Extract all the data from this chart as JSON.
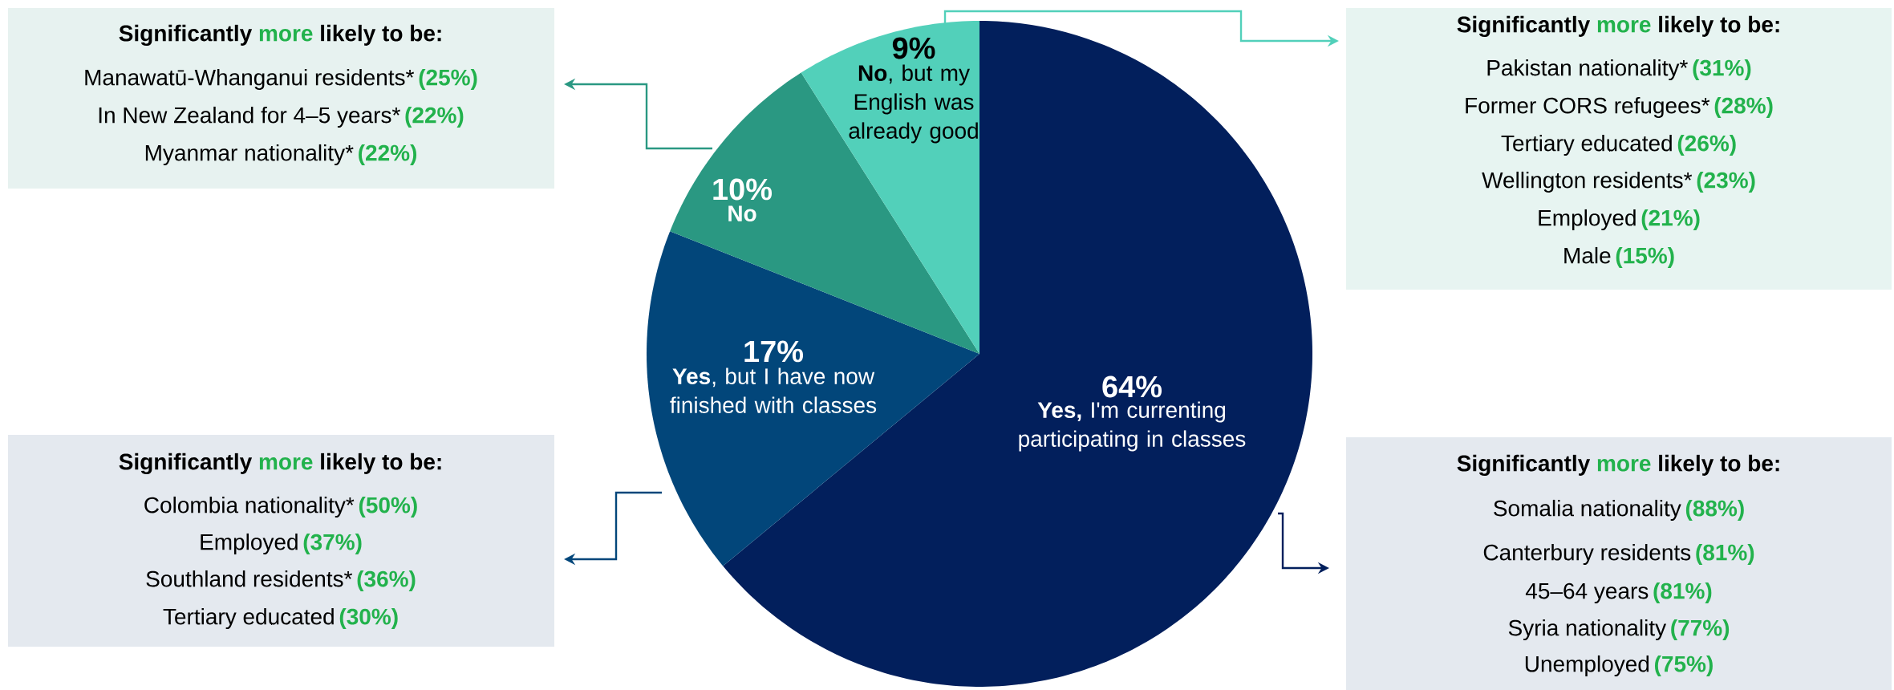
{
  "chart_data": {
    "type": "pie",
    "categories": [
      "**Yes,** I'm currenting participating in classes",
      "**Yes**, but I have now finished with classes",
      "**No**",
      "**No**, but my English was already good"
    ],
    "values": [
      64,
      17,
      10,
      9
    ],
    "colors": [
      "#021f5c",
      "#02467a",
      "#2a9882",
      "#52d0ba"
    ],
    "value_labels": [
      "64%",
      "17%",
      "10%",
      "9%"
    ],
    "annotations": [
      "Significantly",
      "more",
      "likely to be:",
      "Manawatū-Whanganui residents*",
      "(25%)",
      "In New Zealand for 4–5 years*",
      "(22%)",
      "Myanmar nationality*",
      "(22%)",
      "Significantly",
      "more",
      "likely to be:",
      "Pakistan nationality*",
      "(31%)",
      "Former CORS refugees*",
      "(28%)",
      "Tertiary educated",
      "(26%)",
      "Wellington residents*",
      "(23%)",
      "Employed",
      "(21%)",
      "Male",
      "(15%)",
      "Significantly",
      "more",
      "likely to be:",
      "Colombia nationality*",
      "(50%)",
      "Employed",
      "(37%)",
      "Southland residents*",
      "(36%)",
      "Tertiary educated",
      "(30%)",
      "Significantly",
      "more",
      "likely to be:",
      "Somalia nationality",
      "(88%)",
      "Canterbury residents",
      "(81%)",
      "45–64 years",
      "(81%)",
      "Syria nationality",
      "(77%)",
      "Unemployed",
      "(75%)"
    ]
  }
}
